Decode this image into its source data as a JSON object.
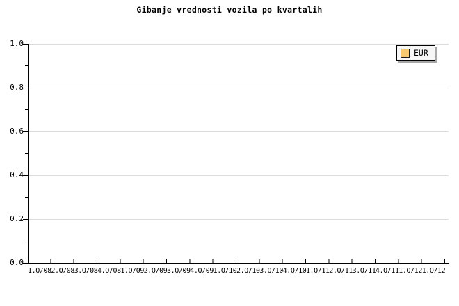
{
  "title": "Gibanje vrednosti vozila po kvartalih",
  "legend": {
    "label": "EUR",
    "swatch_color": "#f8c870",
    "position": "top-right"
  },
  "colors": {
    "background": "#ffffff",
    "axis": "#000000",
    "gridline": "#dcdcdc",
    "legend_background": "#f6f6f6",
    "legend_shadow": "#a8a8a8",
    "series_eur": "#f8c870"
  },
  "chart_data": {
    "type": "line",
    "title": "Gibanje vrednosti vozila po kvartalih",
    "x_categories": [
      "1.Q/08",
      "2.Q/08",
      "3.Q/08",
      "4.Q/08",
      "1.Q/09",
      "2.Q/09",
      "3.Q/09",
      "4.Q/09",
      "1.Q/10",
      "2.Q/10",
      "3.Q/10",
      "4.Q/10",
      "1.Q/11",
      "2.Q/11",
      "3.Q/11",
      "4.Q/11",
      "1.Q/12",
      "1.Q/12"
    ],
    "y_tick_labels": [
      "1.0",
      "0.8",
      "0.6",
      "0.4",
      "0.2",
      "0.0"
    ],
    "ylim": [
      0.0,
      1.0
    ],
    "y_major_step": 0.2,
    "y_minor_step": 0.1,
    "grid": "horizontal-major-only",
    "legend_position": "top-right",
    "series": [
      {
        "name": "EUR",
        "color": "#f8c870",
        "values": []
      }
    ]
  }
}
